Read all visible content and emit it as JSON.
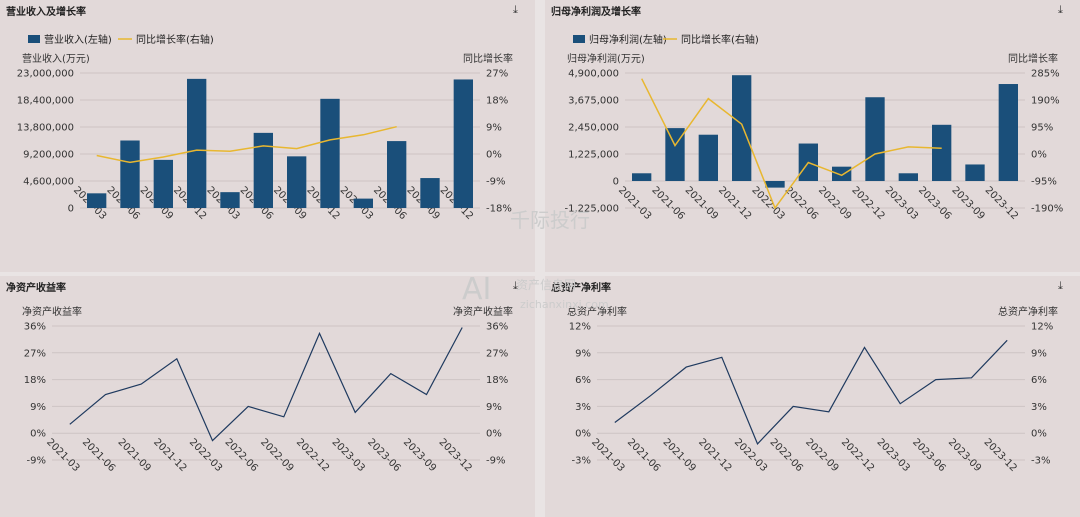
{
  "panels": [
    {
      "title": "营业收入及增长率",
      "download_icon": "download-icon"
    },
    {
      "title": "归母净利润及增长率",
      "download_icon": "download-icon"
    },
    {
      "title": "净资产收益率",
      "download_icon": "download-icon"
    },
    {
      "title": "总资产净利率",
      "download_icon": "download-icon"
    }
  ],
  "watermark": {
    "logo": "AI",
    "text1": "千际投行",
    "text2": "资产信息网",
    "url": "zichanxinxi.com"
  },
  "colors": {
    "bar": "#1a4f7a",
    "growth_line": "#e8b730",
    "ratio_line": "#1f3a5f"
  },
  "chart_data": [
    {
      "type": "bar",
      "categories": [
        "2021-03",
        "2021-06",
        "2021-09",
        "2021-12",
        "2022-03",
        "2022-06",
        "2022-09",
        "2022-12",
        "2023-03",
        "2023-06",
        "2023-09",
        "2023-12"
      ],
      "series": [
        {
          "name": "营业收入(左轴)",
          "type": "bar",
          "axis": "left",
          "values": [
            2500000,
            11500000,
            8200000,
            22000000,
            2700000,
            12800000,
            8800000,
            18600000,
            1600000,
            11400000,
            5100000,
            21900000
          ]
        },
        {
          "name": "同比增长率(右轴)",
          "type": "line",
          "axis": "right",
          "values": [
            -0.5,
            -2.8,
            -1.0,
            1.3,
            0.9,
            2.7,
            1.8,
            4.7,
            6.4,
            9.1,
            null,
            null
          ]
        }
      ],
      "ylabel_left": "营业收入(万元)",
      "ylabel_right": "同比增长率",
      "yticks_left": [
        "23,000,000",
        "18,400,000",
        "13,800,000",
        "9,200,000",
        "4,600,000",
        "0"
      ],
      "yticks_right": [
        "27%",
        "18%",
        "9%",
        "0%",
        "-9%",
        "-18%"
      ],
      "ylim_left": [
        0,
        23000000
      ],
      "ylim_right": [
        -18,
        27
      ],
      "legend": "top-left"
    },
    {
      "type": "bar",
      "categories": [
        "2021-03",
        "2021-06",
        "2021-09",
        "2021-12",
        "2022-03",
        "2022-06",
        "2022-09",
        "2022-12",
        "2023-03",
        "2023-06",
        "2023-09",
        "2023-12"
      ],
      "series": [
        {
          "name": "归母净利润(左轴)",
          "type": "bar",
          "axis": "left",
          "values": [
            350000,
            2400000,
            2100000,
            4800000,
            -300000,
            1700000,
            650000,
            3800000,
            350000,
            2550000,
            750000,
            4400000
          ]
        },
        {
          "name": "同比增长率(右轴)",
          "type": "line",
          "axis": "right",
          "values": [
            265,
            30,
            195,
            105,
            -190,
            -30,
            -75,
            0,
            25,
            20,
            null,
            null
          ]
        }
      ],
      "ylabel_left": "归母净利润(万元)",
      "ylabel_right": "同比增长率",
      "yticks_left": [
        "4,900,000",
        "3,675,000",
        "2,450,000",
        "1,225,000",
        "0",
        "-1,225,000"
      ],
      "yticks_right": [
        "285%",
        "190%",
        "95%",
        "0%",
        "-95%",
        "-190%"
      ],
      "ylim_left": [
        -1225000,
        4900000
      ],
      "ylim_right": [
        -190,
        285
      ],
      "legend": "top-left"
    },
    {
      "type": "line",
      "categories": [
        "2021-03",
        "2021-06",
        "2021-09",
        "2021-12",
        "2022-03",
        "2022-06",
        "2022-09",
        "2022-12",
        "2023-03",
        "2023-06",
        "2023-09",
        "2023-12"
      ],
      "series": [
        {
          "name": "",
          "values": [
            3,
            13,
            16.5,
            25,
            -2.5,
            9,
            5.5,
            33.5,
            7,
            20,
            13,
            35.5
          ]
        }
      ],
      "ylabel_left": "净资产收益率",
      "ylabel_right": "净资产收益率",
      "yticks": [
        "36%",
        "27%",
        "18%",
        "9%",
        "0%",
        "-9%"
      ],
      "ylim": [
        -9,
        36
      ]
    },
    {
      "type": "line",
      "categories": [
        "2021-03",
        "2021-06",
        "2021-09",
        "2021-12",
        "2022-03",
        "2022-06",
        "2022-09",
        "2022-12",
        "2023-03",
        "2023-06",
        "2023-09",
        "2023-12"
      ],
      "series": [
        {
          "name": "",
          "values": [
            1.2,
            4.2,
            7.4,
            8.5,
            -1.2,
            3,
            2.4,
            9.6,
            3.3,
            6,
            6.2,
            10.4
          ]
        }
      ],
      "ylabel_left": "总资产净利率",
      "ylabel_right": "总资产净利率",
      "yticks": [
        "12%",
        "9%",
        "6%",
        "3%",
        "0%",
        "-3%"
      ],
      "ylim": [
        -3,
        12
      ]
    }
  ]
}
